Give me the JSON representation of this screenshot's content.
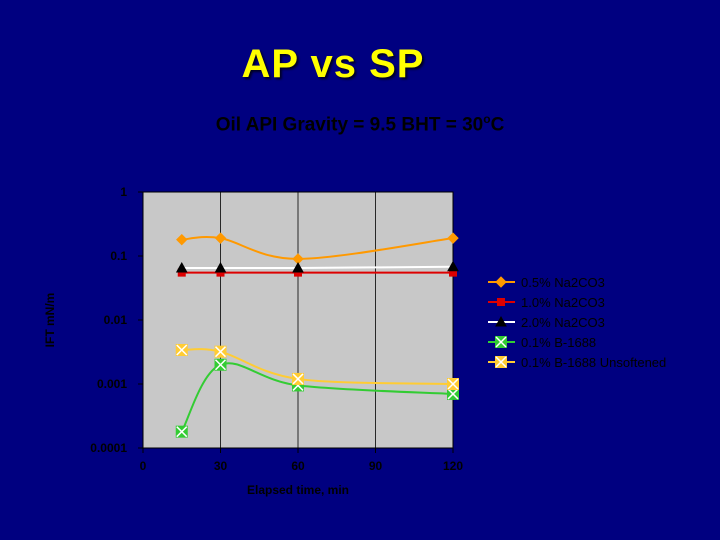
{
  "slide": {
    "title": "AP vs SP"
  },
  "chart_data": {
    "type": "line",
    "title_main": "Oil API Gravity = 9.5 BHT = 30",
    "title_degree": "o",
    "title_unit": "C",
    "xlabel": "Elapsed time, min",
    "ylabel": "IFT mN/m",
    "xlim": [
      0,
      120
    ],
    "ylim": [
      0.0001,
      1
    ],
    "yscale": "log",
    "x_ticks": [
      "0",
      "30",
      "60",
      "90",
      "120"
    ],
    "y_ticks": [
      "0.0001",
      "0.001",
      "0.01",
      "0.1",
      "1"
    ],
    "grid": "vertical",
    "legend_position": "right",
    "series": [
      {
        "name": "0.5% Na2CO3",
        "color": "#ff9900",
        "marker": "diamond",
        "x": [
          15,
          30,
          60,
          120
        ],
        "y": [
          0.18,
          0.19,
          0.09,
          0.19
        ]
      },
      {
        "name": "1.0% Na2CO3",
        "color": "#dd0000",
        "marker": "square",
        "x": [
          15,
          30,
          60,
          120
        ],
        "y": [
          0.055,
          0.055,
          0.055,
          0.055
        ]
      },
      {
        "name": "2.0% Na2CO3",
        "color": "#ffffff",
        "marker": "triangle",
        "x": [
          15,
          30,
          60,
          120
        ],
        "y": [
          0.065,
          0.065,
          0.065,
          0.068
        ]
      },
      {
        "name": "0.1% B-1688",
        "color": "#33cc33",
        "marker": "cross-box",
        "x": [
          15,
          30,
          60,
          120
        ],
        "y": [
          0.00018,
          0.002,
          0.00095,
          0.0007
        ]
      },
      {
        "name": "0.1% B-1688 Unsoftened",
        "color": "#ffcc33",
        "marker": "cross-box",
        "x": [
          15,
          30,
          60,
          120
        ],
        "y": [
          0.0034,
          0.0032,
          0.0012,
          0.001
        ]
      }
    ]
  }
}
